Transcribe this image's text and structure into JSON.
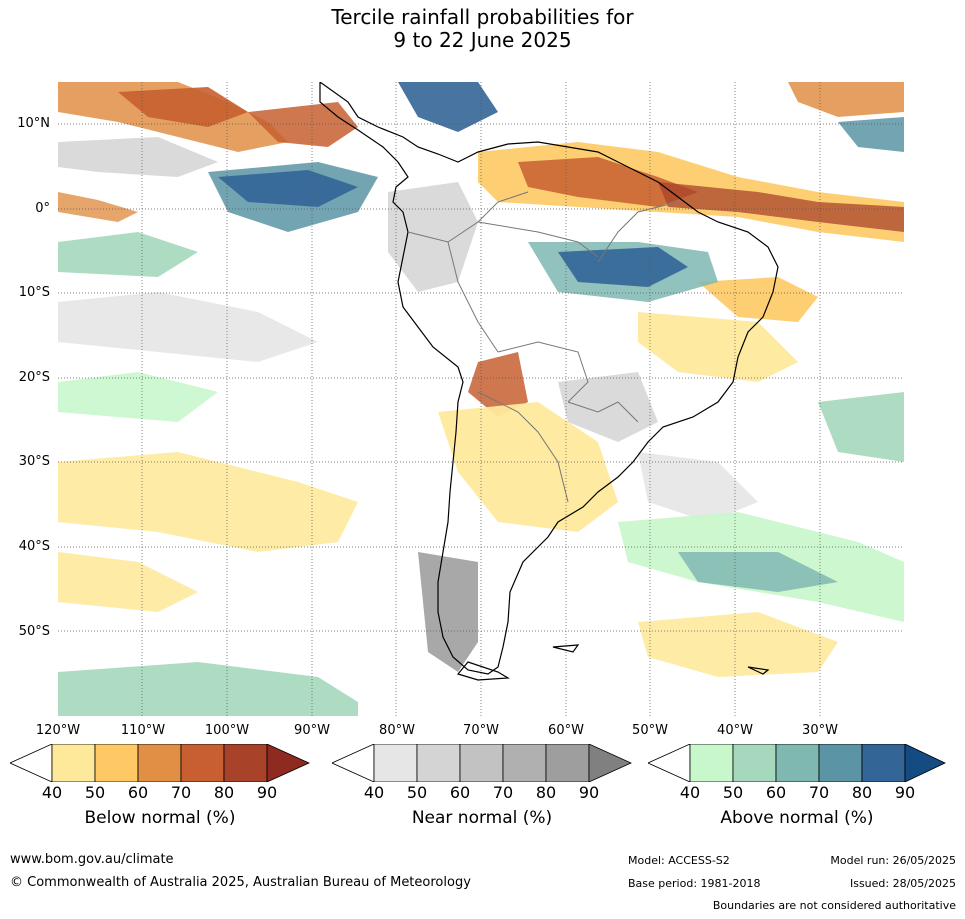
{
  "title": {
    "line1": "Tercile rainfall probabilities for",
    "line2": "9 to 22 June 2025"
  },
  "map": {
    "lat_labels": [
      "10°N",
      "0°",
      "10°S",
      "20°S",
      "30°S",
      "40°S",
      "50°S"
    ],
    "lon_labels": [
      "120°W",
      "110°W",
      "100°W",
      "90°W",
      "80°W",
      "70°W",
      "60°W",
      "50°W",
      "40°W",
      "30°W"
    ]
  },
  "legends": {
    "below": {
      "title": "Below normal (%)",
      "ticks": [
        "40",
        "50",
        "60",
        "70",
        "80",
        "90"
      ],
      "colors": [
        "#ffffff",
        "#fee99b",
        "#fec964",
        "#e08f45",
        "#c75f30",
        "#a8432a",
        "#8e2a1f"
      ]
    },
    "near": {
      "title": "Near normal (%)",
      "ticks": [
        "40",
        "50",
        "60",
        "70",
        "80",
        "90"
      ],
      "colors": [
        "#ffffff",
        "#e6e6e6",
        "#d4d4d4",
        "#c2c2c2",
        "#b0b0b0",
        "#9e9e9e",
        "#808080"
      ]
    },
    "above": {
      "title": "Above normal (%)",
      "ticks": [
        "40",
        "50",
        "60",
        "70",
        "80",
        "90"
      ],
      "colors": [
        "#ffffff",
        "#c9f7cc",
        "#a5d8bc",
        "#7fb7b1",
        "#5b94a4",
        "#336597",
        "#144b83"
      ]
    }
  },
  "footer": {
    "url": "www.bom.gov.au/climate",
    "copyright": "© Commonwealth of Australia 2025, Australian Bureau of Meteorology",
    "model": "Model: ACCESS-S2",
    "model_run": "Model run: 26/05/2025",
    "base_period": "Base period: 1981-2018",
    "issued": "Issued: 28/05/2025",
    "disclaimer": "Boundaries are not considered authoritative"
  }
}
